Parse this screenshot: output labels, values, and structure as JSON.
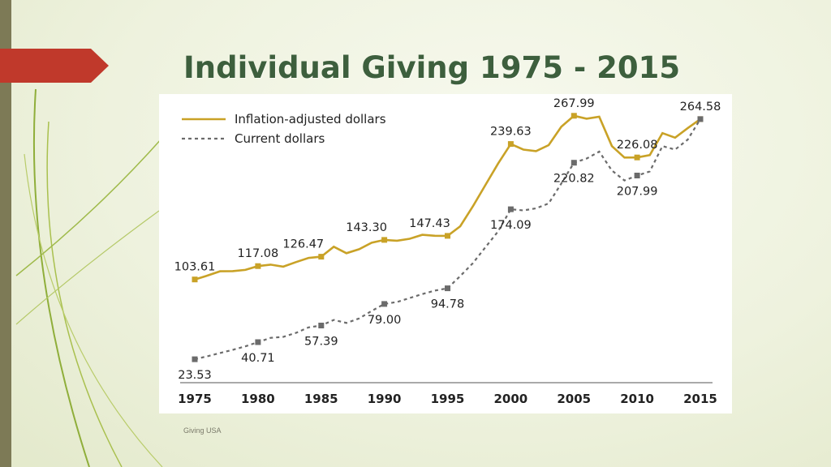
{
  "slide": {
    "title": "Individual Giving 1975 - 2015",
    "source": "Giving USA",
    "colors": {
      "title": "#3d5f3d",
      "accent": "#c0392b",
      "sidebar": "#7d7a56"
    }
  },
  "chart_data": {
    "type": "line",
    "title": "Individual Giving 1975 - 2015",
    "xlabel": "",
    "ylabel": "",
    "xlim": [
      1975,
      2015
    ],
    "ylim": [
      0,
      280
    ],
    "x_ticks": [
      "1975",
      "1980",
      "1985",
      "1990",
      "1995",
      "2000",
      "2005",
      "2010",
      "2015"
    ],
    "grid": false,
    "legend_position": "top-left",
    "series": [
      {
        "name": "Inflation-adjusted dollars",
        "style": "solid",
        "color": "#c9a227",
        "x": [
          1975,
          1976,
          1977,
          1978,
          1979,
          1980,
          1981,
          1982,
          1983,
          1984,
          1985,
          1986,
          1987,
          1988,
          1989,
          1990,
          1991,
          1992,
          1993,
          1994,
          1995,
          1996,
          1997,
          1998,
          1999,
          2000,
          2001,
          2002,
          2003,
          2004,
          2005,
          2006,
          2007,
          2008,
          2009,
          2010,
          2011,
          2012,
          2013,
          2014,
          2015
        ],
        "values": [
          103.61,
          107.5,
          111.8,
          112.0,
          113.2,
          117.08,
          118.5,
          116.5,
          121.0,
          125.3,
          126.47,
          136.5,
          130.0,
          134.0,
          140.5,
          143.3,
          142.5,
          144.5,
          148.5,
          147.5,
          147.43,
          157.0,
          177.0,
          198.5,
          220.0,
          239.63,
          234.0,
          232.5,
          238.5,
          257.0,
          267.99,
          265.0,
          267.0,
          237.5,
          226.0,
          226.08,
          228.5,
          250.5,
          246.0,
          255.5,
          264.58
        ]
      },
      {
        "name": "Current dollars",
        "style": "dashed",
        "color": "#6b6b6b",
        "x": [
          1975,
          1976,
          1977,
          1978,
          1979,
          1980,
          1981,
          1982,
          1983,
          1984,
          1985,
          1986,
          1987,
          1988,
          1989,
          1990,
          1991,
          1992,
          1993,
          1994,
          1995,
          1996,
          1997,
          1998,
          1999,
          2000,
          2001,
          2002,
          2003,
          2004,
          2005,
          2006,
          2007,
          2008,
          2009,
          2010,
          2011,
          2012,
          2013,
          2014,
          2015
        ],
        "values": [
          23.53,
          26.5,
          29.8,
          33.0,
          36.5,
          40.71,
          45.0,
          46.0,
          50.0,
          55.5,
          57.39,
          63.0,
          60.0,
          64.5,
          72.0,
          79.0,
          81.0,
          85.0,
          89.0,
          92.5,
          94.78,
          107.0,
          120.0,
          136.0,
          152.0,
          174.09,
          173.0,
          175.0,
          180.0,
          200.0,
          220.82,
          225.0,
          232.0,
          213.0,
          203.0,
          207.99,
          212.0,
          237.5,
          234.0,
          244.0,
          264.58
        ]
      }
    ],
    "data_labels": [
      {
        "series": 0,
        "year": 1975,
        "text": "103.61",
        "pos": "above"
      },
      {
        "series": 0,
        "year": 1980,
        "text": "117.08",
        "pos": "above"
      },
      {
        "series": 0,
        "year": 1985,
        "text": "126.47",
        "pos": "above-left"
      },
      {
        "series": 0,
        "year": 1990,
        "text": "143.30",
        "pos": "above-left"
      },
      {
        "series": 0,
        "year": 1995,
        "text": "147.43",
        "pos": "above-left"
      },
      {
        "series": 0,
        "year": 2000,
        "text": "239.63",
        "pos": "above"
      },
      {
        "series": 0,
        "year": 2005,
        "text": "267.99",
        "pos": "above"
      },
      {
        "series": 0,
        "year": 2010,
        "text": "226.08",
        "pos": "above"
      },
      {
        "series": 0,
        "year": 2015,
        "text": "264.58",
        "pos": "above"
      },
      {
        "series": 1,
        "year": 1975,
        "text": "23.53",
        "pos": "below"
      },
      {
        "series": 1,
        "year": 1980,
        "text": "40.71",
        "pos": "below"
      },
      {
        "series": 1,
        "year": 1985,
        "text": "57.39",
        "pos": "below"
      },
      {
        "series": 1,
        "year": 1990,
        "text": "79.00",
        "pos": "below"
      },
      {
        "series": 1,
        "year": 1995,
        "text": "94.78",
        "pos": "below"
      },
      {
        "series": 1,
        "year": 2000,
        "text": "174.09",
        "pos": "below"
      },
      {
        "series": 1,
        "year": 2005,
        "text": "220.82",
        "pos": "below"
      },
      {
        "series": 1,
        "year": 2010,
        "text": "207.99",
        "pos": "below"
      }
    ]
  }
}
